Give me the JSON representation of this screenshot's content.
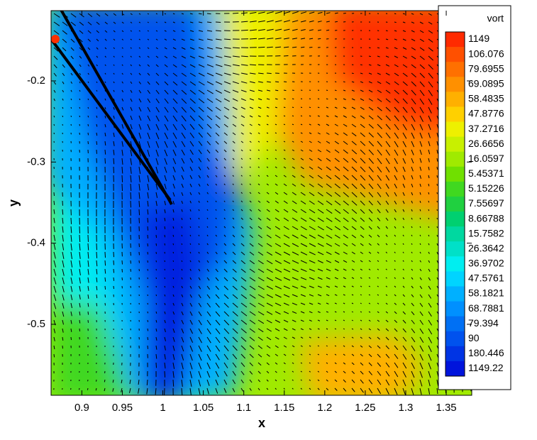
{
  "chart_data": {
    "type": "contour",
    "xlabel": "x",
    "ylabel": "y",
    "xlim": [
      0.862,
      1.3815
    ],
    "ylim": [
      -0.5875,
      -0.1134
    ],
    "xticks": [
      0.9,
      0.95,
      1,
      1.05,
      1.1,
      1.15,
      1.2,
      1.25,
      1.3,
      1.35
    ],
    "yticks": [
      -0.5,
      -0.4,
      -0.3,
      -0.2
    ],
    "legend": {
      "title": "vort",
      "position": "right",
      "levels": [
        1149,
        106.076,
        79.6955,
        69.0895,
        58.4835,
        47.8776,
        37.2716,
        26.6656,
        16.0597,
        5.45371,
        5.15226,
        7.55697,
        8.66788,
        15.7582,
        26.3642,
        36.9702,
        47.5761,
        58.1821,
        68.7881,
        79.394,
        90,
        180.446,
        1149.22
      ],
      "colors": [
        "#ff2a00",
        "#ff5000",
        "#ff7000",
        "#ff9000",
        "#ffb000",
        "#ffd000",
        "#eef000",
        "#c8f000",
        "#a0ea00",
        "#70e000",
        "#40d820",
        "#20d040",
        "#00d070",
        "#00d8a0",
        "#00e0c8",
        "#00eef0",
        "#00d4ff",
        "#00b0ff",
        "#0090ff",
        "#0070f4",
        "#0052ee",
        "#0034e4",
        "#0014dc"
      ]
    }
  }
}
